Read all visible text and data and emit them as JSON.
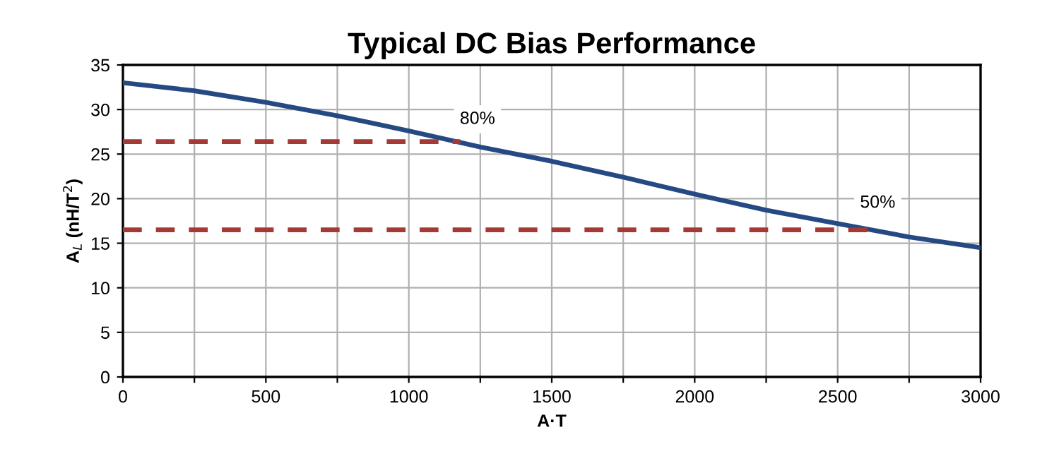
{
  "chart_data": {
    "type": "line",
    "title": "Typical DC Bias Performance",
    "xlabel": "A·T",
    "ylabel": "A$_{L}$ (nH/T$^{2}$)",
    "series": [
      {
        "color": "#254a83",
        "x": [
          0,
          250,
          500,
          750,
          1000,
          1250,
          1500,
          1750,
          2000,
          2250,
          2500,
          2750,
          3000
        ],
        "values": [
          33.0,
          32.1,
          30.8,
          29.3,
          27.6,
          25.8,
          24.2,
          22.4,
          20.5,
          18.7,
          17.2,
          15.7,
          14.5
        ]
      },
      {
        "color": "#a33a35",
        "line_style": "dashed",
        "x": [
          0,
          1180
        ],
        "values": [
          26.4,
          26.4
        ]
      },
      {
        "color": "#a33a35",
        "line_style": "dashed",
        "x": [
          0,
          2620
        ],
        "values": [
          16.5,
          16.5
        ]
      }
    ],
    "annotations": [
      {
        "text": "80%",
        "x": 1240,
        "y": 28.9
      },
      {
        "text": "50%",
        "x": 2640,
        "y": 19.5
      }
    ],
    "xlim": [
      0,
      3000
    ],
    "ylim": [
      0,
      35
    ],
    "xticks": [
      0,
      {
        "value": 250,
        "label": null
      },
      500,
      {
        "value": 750,
        "label": null
      },
      1000,
      {
        "value": 1250,
        "label": null
      },
      1500,
      {
        "value": 1750,
        "label": null
      },
      2000,
      {
        "value": 2250,
        "label": null
      },
      2500,
      {
        "value": 2750,
        "label": null
      },
      3000
    ],
    "yticks": [
      0,
      5,
      10,
      15,
      20,
      25,
      30,
      35
    ],
    "grid": true,
    "marker": "none",
    "line_style": "solid"
  }
}
